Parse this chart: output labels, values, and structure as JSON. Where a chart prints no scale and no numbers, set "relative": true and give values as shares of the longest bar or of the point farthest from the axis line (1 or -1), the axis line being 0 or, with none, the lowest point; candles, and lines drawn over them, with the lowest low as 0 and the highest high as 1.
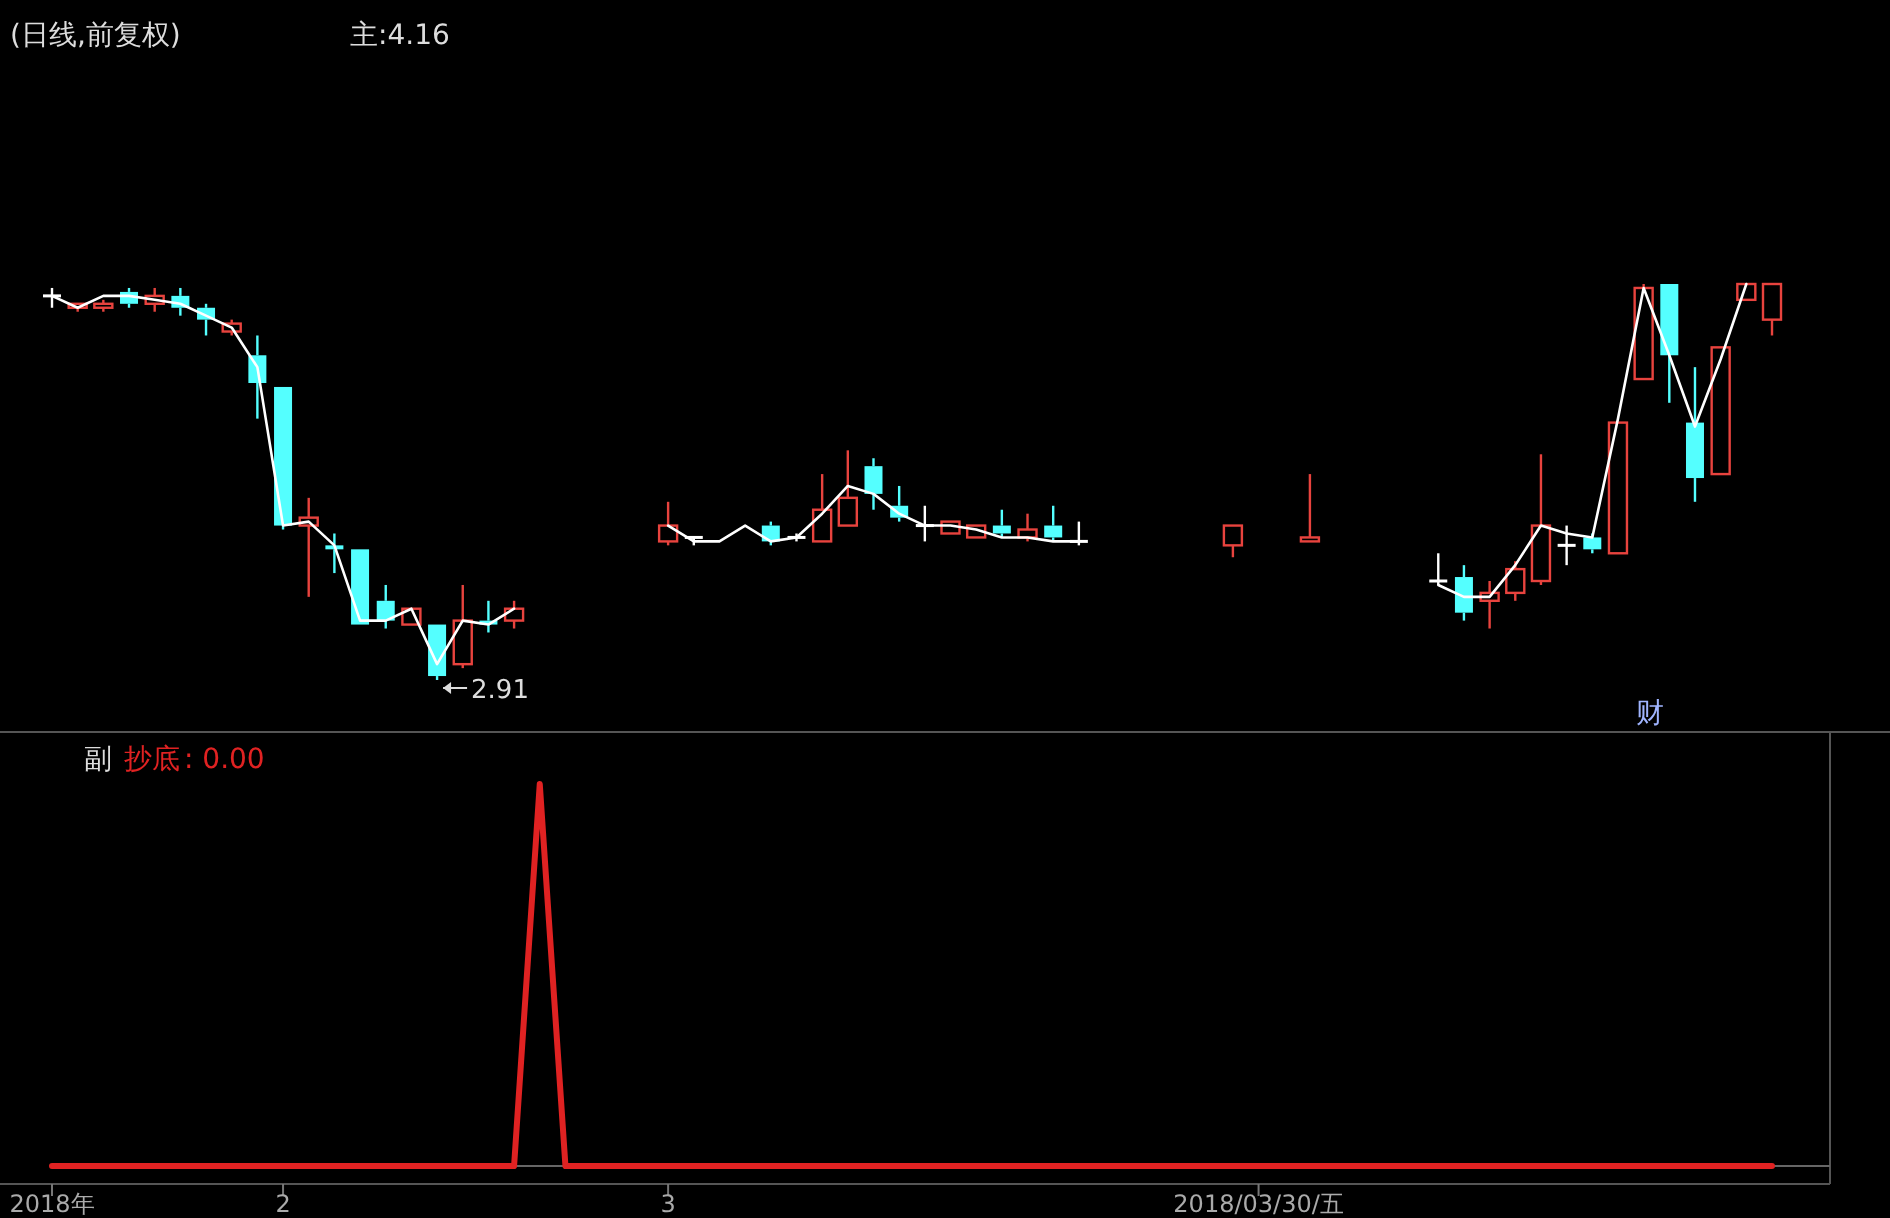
{
  "chart_data": [
    {
      "type": "candlestick",
      "title": "(日线,前复权)",
      "subtitle": "主:4.16",
      "relative": true,
      "categories": [
        null,
        null,
        null,
        null,
        null,
        null,
        null,
        null,
        null,
        null,
        null,
        null,
        null,
        null,
        null,
        null,
        null,
        null,
        null,
        null,
        null,
        null,
        null,
        null,
        null,
        null,
        null,
        null,
        null,
        null,
        null,
        null,
        null,
        null,
        null,
        null,
        null,
        null,
        null,
        null,
        null,
        null,
        null,
        null,
        null,
        null,
        null,
        null,
        null,
        null,
        null,
        null,
        null,
        null,
        null,
        null,
        null,
        null,
        null,
        null,
        null,
        null,
        null,
        null,
        null,
        null,
        null,
        null
      ],
      "ohlc": [
        [
          0.97,
          0.99,
          0.94,
          0.97
        ],
        [
          0.94,
          0.95,
          0.93,
          0.95
        ],
        [
          0.94,
          0.96,
          0.93,
          0.95
        ],
        [
          0.98,
          0.99,
          0.94,
          0.95
        ],
        [
          0.95,
          0.99,
          0.93,
          0.97
        ],
        [
          0.97,
          0.99,
          0.92,
          0.94
        ],
        [
          0.94,
          0.95,
          0.87,
          0.91
        ],
        [
          0.88,
          0.91,
          0.87,
          0.9
        ],
        [
          0.82,
          0.87,
          0.66,
          0.75
        ],
        [
          0.74,
          0.74,
          0.38,
          0.39
        ],
        [
          0.39,
          0.46,
          0.21,
          0.41
        ],
        [
          0.34,
          0.37,
          0.27,
          0.33
        ],
        [
          0.33,
          0.33,
          0.14,
          0.14
        ],
        [
          0.2,
          0.24,
          0.13,
          0.15
        ],
        [
          0.14,
          0.18,
          0.14,
          0.18
        ],
        [
          0.14,
          0.14,
          0,
          0.01
        ],
        [
          0.04,
          0.24,
          0.03,
          0.15
        ],
        [
          0.15,
          0.2,
          0.12,
          0.14
        ],
        [
          0.15,
          0.2,
          0.13,
          0.18
        ],
        null,
        null,
        null,
        null,
        null,
        [
          0.35,
          0.45,
          0.34,
          0.39
        ],
        [
          0.36,
          0.36,
          0.34,
          0.36
        ],
        null,
        null,
        [
          0.39,
          0.4,
          0.34,
          0.35
        ],
        [
          0.36,
          0.37,
          0.35,
          0.36
        ],
        [
          0.35,
          0.52,
          0.35,
          0.43
        ],
        [
          0.39,
          0.58,
          0.39,
          0.46
        ],
        [
          0.54,
          0.56,
          0.43,
          0.47
        ],
        [
          0.44,
          0.49,
          0.4,
          0.41
        ],
        [
          0.39,
          0.44,
          0.35,
          0.39
        ],
        [
          0.37,
          0.4,
          0.37,
          0.4
        ],
        [
          0.36,
          0.39,
          0.36,
          0.39
        ],
        [
          0.39,
          0.43,
          0.36,
          0.37
        ],
        [
          0.36,
          0.42,
          0.35,
          0.38
        ],
        [
          0.39,
          0.44,
          0.35,
          0.36
        ],
        [
          0.35,
          0.4,
          0.34,
          0.35
        ],
        null,
        null,
        null,
        null,
        null,
        [
          0.34,
          0.39,
          0.31,
          0.39
        ],
        null,
        null,
        [
          0.35,
          0.52,
          0.35,
          0.36
        ],
        null,
        null,
        null,
        null,
        [
          0.25,
          0.32,
          0.24,
          0.25
        ],
        [
          0.26,
          0.29,
          0.15,
          0.17
        ],
        [
          0.2,
          0.25,
          0.13,
          0.22
        ],
        [
          0.22,
          0.3,
          0.2,
          0.28
        ],
        [
          0.25,
          0.57,
          0.24,
          0.39
        ],
        [
          0.34,
          0.39,
          0.29,
          0.34
        ],
        [
          0.36,
          0.37,
          0.32,
          0.33
        ],
        [
          0.32,
          0.65,
          0.32,
          0.65
        ],
        [
          0.76,
          1,
          0.76,
          0.99
        ],
        [
          1,
          1,
          0.7,
          0.82
        ],
        [
          0.65,
          0.79,
          0.45,
          0.51
        ],
        [
          0.52,
          0.84,
          0.52,
          0.84
        ],
        [
          0.96,
          1,
          0.96,
          1
        ],
        [
          0.91,
          1,
          0.87,
          1
        ]
      ],
      "series": [
        {
          "type": "line",
          "color": "#ffffff",
          "values": [
            0.97,
            0.94,
            0.97,
            0.97,
            0.96,
            0.95,
            0.92,
            0.89,
            0.79,
            0.39,
            0.4,
            0.34,
            0.15,
            0.15,
            0.18,
            0.04,
            0.15,
            0.14,
            0.18,
            null,
            null,
            null,
            null,
            null,
            0.39,
            0.35,
            0.35,
            0.39,
            0.35,
            0.36,
            0.42,
            0.49,
            0.47,
            0.42,
            0.39,
            0.39,
            0.38,
            0.36,
            0.36,
            0.35,
            0.35,
            null,
            null,
            null,
            null,
            null,
            null,
            null,
            null,
            null,
            null,
            null,
            null,
            null,
            0.24,
            0.21,
            0.21,
            0.29,
            0.39,
            0.37,
            0.36,
            0.66,
            0.99,
            0.82,
            0.64,
            0.81,
            1,
            null
          ]
        }
      ],
      "annotations": [
        "2.91",
        "财"
      ]
    },
    {
      "type": "line",
      "title": "副",
      "relative": true,
      "categories": [
        "2018年",
        null,
        null,
        null,
        null,
        null,
        null,
        null,
        null,
        "2",
        null,
        null,
        null,
        null,
        null,
        null,
        null,
        null,
        null,
        null,
        null,
        null,
        null,
        null,
        "3",
        null,
        null,
        null,
        null,
        null,
        null,
        null,
        null,
        null,
        null,
        null,
        null,
        null,
        null,
        null,
        null,
        null,
        null,
        null,
        null,
        null,
        null,
        "2018/03/30/五",
        null,
        null,
        null,
        null,
        null,
        null,
        null,
        null,
        null,
        null,
        null,
        null,
        null,
        null,
        null,
        null,
        null,
        null,
        null,
        null
      ],
      "series": [
        {
          "name": "抄底",
          "color": "#e02222",
          "values": [
            0,
            0,
            0,
            0,
            0,
            0,
            0,
            0,
            0,
            0,
            0,
            0,
            0,
            0,
            0,
            0,
            0,
            0,
            0,
            1,
            0,
            0,
            0,
            0,
            0,
            0,
            0,
            0,
            0,
            0,
            0,
            0,
            0,
            0,
            0,
            0,
            0,
            0,
            0,
            0,
            0,
            0,
            0,
            0,
            0,
            0,
            0,
            0,
            0,
            0,
            0,
            0,
            0,
            0,
            0,
            0,
            0,
            0,
            0,
            0,
            0,
            0,
            0,
            0,
            0,
            0,
            0,
            0
          ]
        }
      ],
      "annotations": [
        ": 0.00"
      ]
    }
  ]
}
